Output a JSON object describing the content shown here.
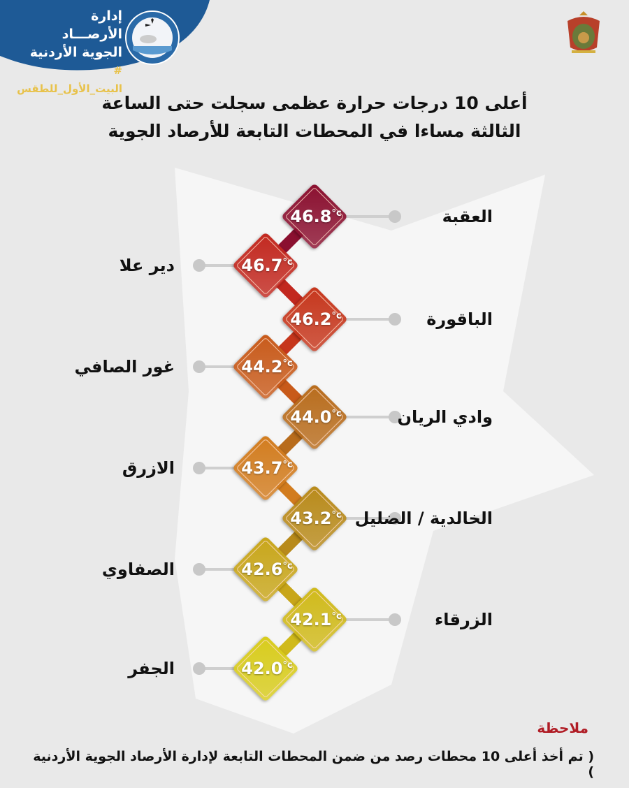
{
  "header": {
    "org_line1": "إدارة الأرصـــاد",
    "org_line2": "الجوية الأردنية",
    "hashtag": "# البيت_الأول_للطقس",
    "brand_color": "#1e5a96",
    "emblem_icon": "meteorological-department-emblem",
    "crest_icon": "jordan-coat-of-arms"
  },
  "title": {
    "line1": "أعلى 10 درجات حرارة عظمى سجلت حتى الساعة",
    "line2": "الثالثة مساءا في المحطات التابعة للأرصاد الجوية"
  },
  "unit": "°c",
  "stations": [
    {
      "name": "العقبة",
      "temp": "46.8",
      "color": "#8b1030"
    },
    {
      "name": "دير علا",
      "temp": "46.7",
      "color": "#c2281f"
    },
    {
      "name": "الباقورة",
      "temp": "46.2",
      "color": "#c6361c"
    },
    {
      "name": "غور الصافي",
      "temp": "44.2",
      "color": "#c85a1a"
    },
    {
      "name": "وادي الريان",
      "temp": "44.0",
      "color": "#b86c1c"
    },
    {
      "name": "الازرق",
      "temp": "43.7",
      "color": "#d27c1e"
    },
    {
      "name": "الخالدية / الضليل",
      "temp": "43.2",
      "color": "#b88a1a"
    },
    {
      "name": "الصفاوي",
      "temp": "42.6",
      "color": "#c8a61a"
    },
    {
      "name": "الزرقاء",
      "temp": "42.1",
      "color": "#d0ba1a"
    },
    {
      "name": "الجفر",
      "temp": "42.0",
      "color": "#d8cc1c"
    }
  ],
  "note": {
    "heading": "ملاحظة",
    "text": "( تم أخذ أعلى 10 محطات رصد من ضمن المحطات التابعة لإدارة الأرصاد الجوية الأردنية )"
  }
}
